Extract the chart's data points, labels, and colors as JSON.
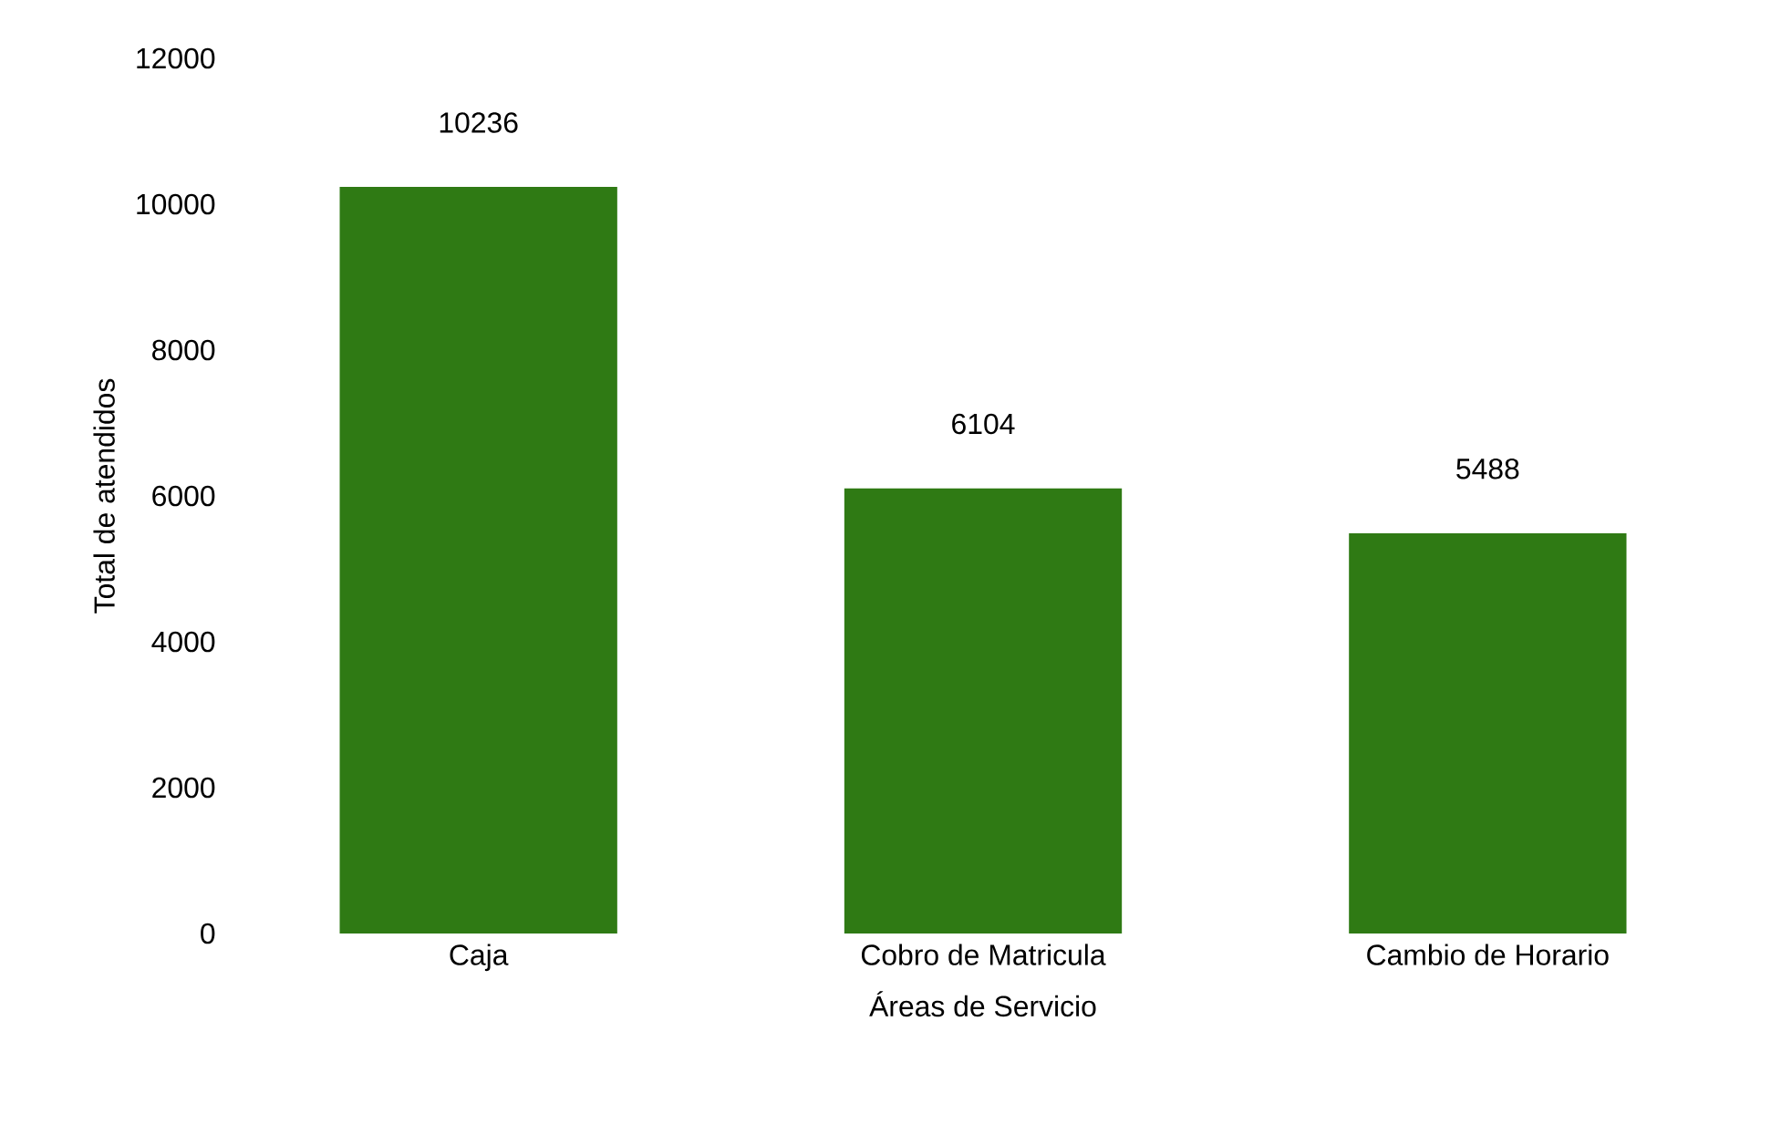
{
  "chart_data": {
    "type": "bar",
    "xlabel": "Áreas de Servicio",
    "ylabel": "Total de atendidos",
    "categories": [
      "Caja",
      "Cobro de Matricula",
      "Cambio de Horario"
    ],
    "values": [
      10236,
      6104,
      5488
    ],
    "color": "#2f7a14",
    "data_labels": true,
    "ylim": [
      0,
      12000
    ],
    "yticks": [
      0,
      2000,
      4000,
      6000,
      8000,
      10000,
      12000
    ],
    "grid": false
  }
}
